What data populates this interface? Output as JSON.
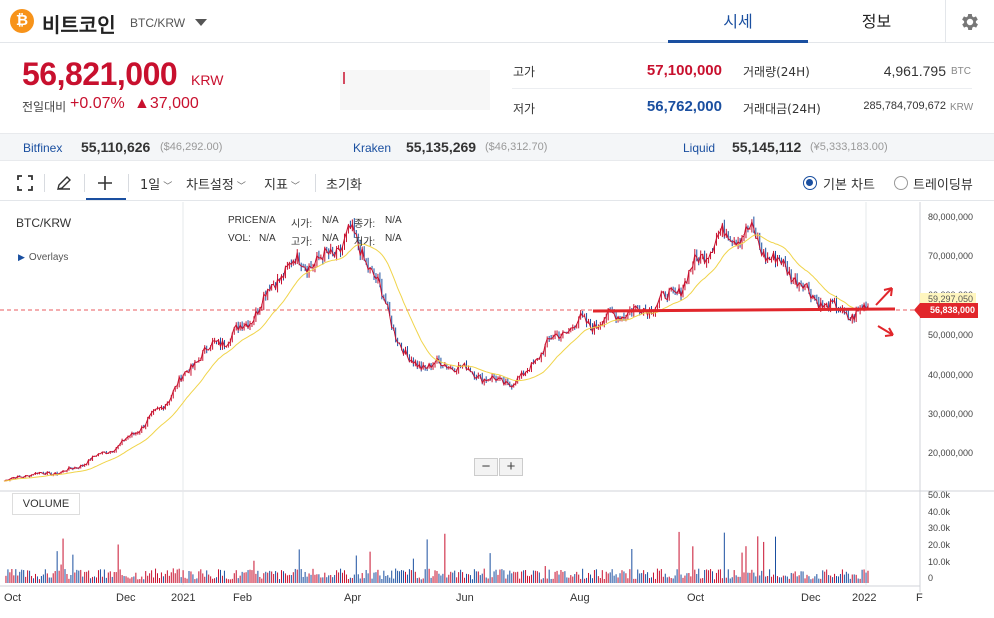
{
  "header": {
    "coin_symbol_glyph": "₿",
    "coin_name": "비트코인",
    "pair": "BTC/KRW",
    "tabs": [
      {
        "label": "시세",
        "active": true
      },
      {
        "label": "정보",
        "active": false
      }
    ]
  },
  "summary": {
    "price": "56,821,000",
    "price_unit": "KRW",
    "change_label": "전일대비",
    "change_pct": "+0.07%",
    "change_abs": "▲37,000",
    "high_label": "고가",
    "high_value": "57,100,000",
    "low_label": "저가",
    "low_value": "56,762,000",
    "volume_label": "거래량(24H)",
    "volume_value": "4,961.795",
    "volume_unit": "BTC",
    "amount_label": "거래대금(24H)",
    "amount_value": "285,784,709,672",
    "amount_unit": "KRW"
  },
  "exchanges": [
    {
      "name": "Bitfinex",
      "value": "55,110,626",
      "usd": "($46,292.00)"
    },
    {
      "name": "Kraken",
      "value": "55,135,269",
      "usd": "($46,312.70)"
    },
    {
      "name": "Liquid",
      "value": "55,145,112",
      "usd": "(¥5,333,183.00)"
    }
  ],
  "toolbar": {
    "interval": "1일",
    "chart_settings": "차트설정",
    "indicators": "지표",
    "reset": "초기화",
    "modes": [
      {
        "label": "기본 차트",
        "selected": true
      },
      {
        "label": "트레이딩뷰",
        "selected": false
      }
    ]
  },
  "chart": {
    "symbol_label": "BTC/KRW",
    "overlays_label": "Overlays",
    "ohlc_labels": {
      "price": "PRICE:",
      "open": "시가:",
      "close": "종가:",
      "vol": "VOL:",
      "high": "고가:",
      "low": "저가:",
      "na": "N/A"
    },
    "volume_label": "VOLUME",
    "zoom_out": "−",
    "zoom_in": "+",
    "current_price_tag": "56,838,000",
    "ma_tag": "59,297,050",
    "price_ticks": [
      "80,000,000",
      "70,000,000",
      "60,000,000",
      "50,000,000",
      "40,000,000",
      "30,000,000",
      "20,000,000"
    ],
    "volume_ticks": [
      "50.0k",
      "40.0k",
      "30.0k",
      "20.0k",
      "10.0k",
      "0"
    ],
    "x_ticks": [
      "Oct",
      "Dec",
      "2021",
      "Feb",
      "Apr",
      "Jun",
      "Aug",
      "Oct",
      "Dec",
      "2022",
      "F"
    ],
    "up_color": "#c8102e",
    "down_color": "#1a4fa0",
    "ma_color": "#f0d44a",
    "trendline_color": "#e1262b"
  },
  "chart_data": {
    "type": "line",
    "title": "BTC/KRW",
    "x": [
      "2020-10",
      "2020-11",
      "2020-12",
      "2021-01",
      "2021-02",
      "2021-03",
      "2021-04",
      "2021-05",
      "2021-06",
      "2021-07",
      "2021-08",
      "2021-09",
      "2021-10",
      "2021-11",
      "2021-12",
      "2022-01"
    ],
    "series": [
      {
        "name": "BTC/KRW",
        "values": [
          12800000,
          15500000,
          21000000,
          37000000,
          52000000,
          66000000,
          76000000,
          45000000,
          40000000,
          39000000,
          55000000,
          54000000,
          68000000,
          78000000,
          58000000,
          57000000
        ]
      }
    ],
    "ylim": [
      10000000,
      85000000
    ],
    "ylabel": "",
    "xlabel": ""
  }
}
